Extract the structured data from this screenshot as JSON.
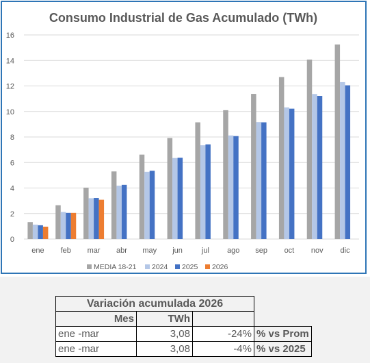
{
  "chart_data": {
    "type": "bar",
    "title": "Consumo Industrial de Gas Acumulado (TWh)",
    "categories": [
      "ene",
      "feb",
      "mar",
      "abr",
      "may",
      "jun",
      "jul",
      "ago",
      "sep",
      "oct",
      "nov",
      "dic"
    ],
    "ylim": [
      0,
      16
    ],
    "yticks": [
      "0",
      "2",
      "4",
      "6",
      "8",
      "10",
      "12",
      "14",
      "16"
    ],
    "grid": true,
    "legend_position": "bottom",
    "series": [
      {
        "name": "MEDIA 18-21",
        "color": "#a6a6a6",
        "values": [
          1.33,
          2.65,
          4.03,
          5.3,
          6.62,
          7.92,
          9.15,
          10.1,
          11.38,
          12.7,
          14.07,
          15.25
        ]
      },
      {
        "name": "2024",
        "color": "#b4c7e7",
        "values": [
          1.13,
          2.12,
          3.2,
          4.18,
          5.27,
          6.35,
          7.35,
          8.12,
          9.17,
          10.32,
          11.37,
          12.3
        ]
      },
      {
        "name": "2025",
        "color": "#4472c4",
        "values": [
          1.08,
          2.05,
          3.22,
          4.25,
          5.35,
          6.37,
          7.42,
          8.07,
          9.15,
          10.22,
          11.22,
          12.05
        ]
      },
      {
        "name": "2026",
        "color": "#ed7d31",
        "values": [
          0.97,
          2.05,
          3.08,
          null,
          null,
          null,
          null,
          null,
          null,
          null,
          null,
          null
        ]
      }
    ]
  },
  "table": {
    "title": "Variación acumulada 2026",
    "col_mes": "Mes",
    "col_twh": "TWh",
    "rows": [
      {
        "mes": "ene -mar",
        "twh": "3,08",
        "pct": "-24%",
        "label": "% vs Prom"
      },
      {
        "mes": "ene -mar",
        "twh": "3,08",
        "pct": "-4%",
        "label": "% vs 2025"
      }
    ]
  }
}
